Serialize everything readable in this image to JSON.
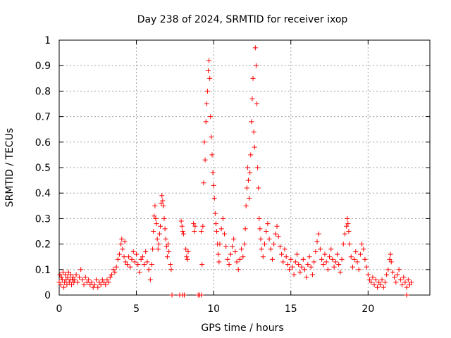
{
  "chart_data": {
    "type": "scatter",
    "title": "Day 238 of 2024, SRMTID for receiver ixop",
    "xlabel": "GPS time / hours",
    "ylabel": "SRMTID / TECUs",
    "xlim": [
      0,
      24
    ],
    "ylim": [
      0,
      1
    ],
    "xticks": [
      0,
      5,
      10,
      15,
      20
    ],
    "xtick_labels": [
      "0",
      "5",
      "10",
      "15",
      "20"
    ],
    "yticks": [
      0,
      0.1,
      0.2,
      0.3,
      0.4,
      0.5,
      0.6,
      0.7,
      0.8,
      0.9,
      1
    ],
    "ytick_labels": [
      "0",
      "0.1",
      "0.2",
      "0.3",
      "0.4",
      "0.5",
      "0.6",
      "0.7",
      "0.8",
      "0.9",
      "1"
    ],
    "grid": true,
    "marker": "+",
    "color": "#ff0000",
    "series": [
      {
        "name": "SRMTID",
        "points": [
          [
            0.0,
            0.05
          ],
          [
            0.05,
            0.08
          ],
          [
            0.1,
            0.04
          ],
          [
            0.15,
            0.07
          ],
          [
            0.2,
            0.06
          ],
          [
            0.25,
            0.09
          ],
          [
            0.3,
            0.03
          ],
          [
            0.35,
            0.05
          ],
          [
            0.4,
            0.08
          ],
          [
            0.45,
            0.06
          ],
          [
            0.5,
            0.04
          ],
          [
            0.55,
            0.07
          ],
          [
            0.6,
            0.09
          ],
          [
            0.65,
            0.05
          ],
          [
            0.7,
            0.06
          ],
          [
            0.75,
            0.08
          ],
          [
            0.8,
            0.04
          ],
          [
            0.85,
            0.06
          ],
          [
            0.9,
            0.07
          ],
          [
            0.95,
            0.05
          ],
          [
            1.0,
            0.06
          ],
          [
            1.1,
            0.08
          ],
          [
            1.2,
            0.05
          ],
          [
            1.3,
            0.07
          ],
          [
            1.4,
            0.1
          ],
          [
            1.5,
            0.06
          ],
          [
            1.6,
            0.04
          ],
          [
            1.7,
            0.07
          ],
          [
            1.8,
            0.05
          ],
          [
            1.9,
            0.06
          ],
          [
            2.0,
            0.04
          ],
          [
            2.1,
            0.05
          ],
          [
            2.2,
            0.03
          ],
          [
            2.3,
            0.04
          ],
          [
            2.4,
            0.06
          ],
          [
            2.5,
            0.03
          ],
          [
            2.6,
            0.05
          ],
          [
            2.7,
            0.04
          ],
          [
            2.8,
            0.06
          ],
          [
            2.9,
            0.05
          ],
          [
            3.0,
            0.04
          ],
          [
            3.1,
            0.06
          ],
          [
            3.2,
            0.05
          ],
          [
            3.3,
            0.07
          ],
          [
            3.4,
            0.08
          ],
          [
            3.5,
            0.1
          ],
          [
            3.6,
            0.09
          ],
          [
            3.7,
            0.11
          ],
          [
            3.8,
            0.14
          ],
          [
            3.9,
            0.16
          ],
          [
            4.0,
            0.2
          ],
          [
            4.05,
            0.22
          ],
          [
            4.1,
            0.18
          ],
          [
            4.2,
            0.15
          ],
          [
            4.25,
            0.21
          ],
          [
            4.3,
            0.13
          ],
          [
            4.4,
            0.12
          ],
          [
            4.5,
            0.15
          ],
          [
            4.6,
            0.11
          ],
          [
            4.7,
            0.14
          ],
          [
            4.8,
            0.17
          ],
          [
            4.9,
            0.13
          ],
          [
            5.0,
            0.16
          ],
          [
            5.1,
            0.12
          ],
          [
            5.2,
            0.09
          ],
          [
            5.3,
            0.14
          ],
          [
            5.4,
            0.15
          ],
          [
            5.5,
            0.12
          ],
          [
            5.6,
            0.17
          ],
          [
            5.7,
            0.13
          ],
          [
            5.8,
            0.1
          ],
          [
            5.9,
            0.06
          ],
          [
            6.0,
            0.12
          ],
          [
            6.05,
            0.18
          ],
          [
            6.1,
            0.25
          ],
          [
            6.15,
            0.31
          ],
          [
            6.2,
            0.35
          ],
          [
            6.25,
            0.3
          ],
          [
            6.3,
            0.28
          ],
          [
            6.35,
            0.22
          ],
          [
            6.4,
            0.18
          ],
          [
            6.45,
            0.2
          ],
          [
            6.5,
            0.24
          ],
          [
            6.55,
            0.27
          ],
          [
            6.6,
            0.36
          ],
          [
            6.65,
            0.39
          ],
          [
            6.7,
            0.37
          ],
          [
            6.75,
            0.35
          ],
          [
            6.8,
            0.3
          ],
          [
            6.85,
            0.26
          ],
          [
            6.9,
            0.22
          ],
          [
            6.95,
            0.19
          ],
          [
            7.0,
            0.15
          ],
          [
            7.05,
            0.2
          ],
          [
            7.1,
            0.17
          ],
          [
            7.2,
            0.12
          ],
          [
            7.25,
            0.1
          ],
          [
            7.3,
            0.0
          ],
          [
            7.8,
            0.0
          ],
          [
            8.0,
            0.0
          ],
          [
            8.1,
            0.0
          ],
          [
            7.9,
            0.29
          ],
          [
            7.95,
            0.27
          ],
          [
            8.0,
            0.25
          ],
          [
            8.05,
            0.24
          ],
          [
            8.2,
            0.18
          ],
          [
            8.25,
            0.15
          ],
          [
            8.3,
            0.14
          ],
          [
            8.35,
            0.17
          ],
          [
            8.7,
            0.28
          ],
          [
            8.75,
            0.25
          ],
          [
            8.8,
            0.27
          ],
          [
            9.0,
            0.0
          ],
          [
            9.1,
            0.0
          ],
          [
            9.2,
            0.0
          ],
          [
            9.2,
            0.25
          ],
          [
            9.25,
            0.12
          ],
          [
            9.3,
            0.27
          ],
          [
            9.35,
            0.44
          ],
          [
            9.4,
            0.6
          ],
          [
            9.45,
            0.53
          ],
          [
            9.5,
            0.68
          ],
          [
            9.55,
            0.75
          ],
          [
            9.6,
            0.8
          ],
          [
            9.65,
            0.88
          ],
          [
            9.7,
            0.92
          ],
          [
            9.75,
            0.85
          ],
          [
            9.8,
            0.7
          ],
          [
            9.85,
            0.62
          ],
          [
            9.9,
            0.55
          ],
          [
            9.95,
            0.48
          ],
          [
            10.0,
            0.43
          ],
          [
            10.05,
            0.38
          ],
          [
            10.1,
            0.32
          ],
          [
            10.15,
            0.28
          ],
          [
            10.2,
            0.25
          ],
          [
            10.25,
            0.2
          ],
          [
            10.3,
            0.16
          ],
          [
            10.35,
            0.13
          ],
          [
            10.4,
            0.2
          ],
          [
            10.5,
            0.26
          ],
          [
            10.6,
            0.3
          ],
          [
            10.7,
            0.24
          ],
          [
            10.8,
            0.19
          ],
          [
            10.9,
            0.14
          ],
          [
            11.0,
            0.12
          ],
          [
            11.1,
            0.16
          ],
          [
            11.2,
            0.19
          ],
          [
            11.3,
            0.22
          ],
          [
            11.4,
            0.17
          ],
          [
            11.5,
            0.13
          ],
          [
            11.6,
            0.1
          ],
          [
            11.7,
            0.14
          ],
          [
            11.8,
            0.18
          ],
          [
            11.9,
            0.15
          ],
          [
            12.0,
            0.2
          ],
          [
            12.05,
            0.26
          ],
          [
            12.1,
            0.35
          ],
          [
            12.15,
            0.42
          ],
          [
            12.2,
            0.5
          ],
          [
            12.25,
            0.45
          ],
          [
            12.3,
            0.38
          ],
          [
            12.35,
            0.48
          ],
          [
            12.4,
            0.55
          ],
          [
            12.45,
            0.68
          ],
          [
            12.5,
            0.77
          ],
          [
            12.55,
            0.85
          ],
          [
            12.6,
            0.64
          ],
          [
            12.65,
            0.58
          ],
          [
            12.7,
            0.97
          ],
          [
            12.75,
            0.9
          ],
          [
            12.8,
            0.75
          ],
          [
            12.85,
            0.5
          ],
          [
            12.9,
            0.42
          ],
          [
            12.95,
            0.3
          ],
          [
            13.0,
            0.26
          ],
          [
            13.05,
            0.22
          ],
          [
            13.1,
            0.18
          ],
          [
            13.2,
            0.15
          ],
          [
            13.3,
            0.2
          ],
          [
            13.4,
            0.25
          ],
          [
            13.5,
            0.28
          ],
          [
            13.6,
            0.22
          ],
          [
            13.7,
            0.18
          ],
          [
            13.8,
            0.14
          ],
          [
            13.9,
            0.2
          ],
          [
            14.0,
            0.24
          ],
          [
            14.1,
            0.27
          ],
          [
            14.2,
            0.23
          ],
          [
            14.3,
            0.19
          ],
          [
            14.4,
            0.16
          ],
          [
            14.5,
            0.13
          ],
          [
            14.6,
            0.18
          ],
          [
            14.7,
            0.15
          ],
          [
            14.8,
            0.12
          ],
          [
            14.9,
            0.1
          ],
          [
            15.0,
            0.14
          ],
          [
            15.1,
            0.11
          ],
          [
            15.2,
            0.08
          ],
          [
            15.3,
            0.13
          ],
          [
            15.4,
            0.16
          ],
          [
            15.5,
            0.12
          ],
          [
            15.6,
            0.09
          ],
          [
            15.7,
            0.11
          ],
          [
            15.8,
            0.14
          ],
          [
            15.9,
            0.1
          ],
          [
            16.0,
            0.07
          ],
          [
            16.1,
            0.12
          ],
          [
            16.2,
            0.15
          ],
          [
            16.3,
            0.11
          ],
          [
            16.4,
            0.08
          ],
          [
            16.5,
            0.13
          ],
          [
            16.6,
            0.17
          ],
          [
            16.7,
            0.21
          ],
          [
            16.8,
            0.24
          ],
          [
            16.9,
            0.18
          ],
          [
            17.0,
            0.14
          ],
          [
            17.1,
            0.12
          ],
          [
            17.2,
            0.16
          ],
          [
            17.3,
            0.13
          ],
          [
            17.4,
            0.1
          ],
          [
            17.5,
            0.15
          ],
          [
            17.6,
            0.18
          ],
          [
            17.7,
            0.14
          ],
          [
            17.8,
            0.11
          ],
          [
            17.9,
            0.13
          ],
          [
            18.0,
            0.16
          ],
          [
            18.1,
            0.12
          ],
          [
            18.2,
            0.09
          ],
          [
            18.3,
            0.14
          ],
          [
            18.4,
            0.2
          ],
          [
            18.5,
            0.24
          ],
          [
            18.6,
            0.27
          ],
          [
            18.65,
            0.3
          ],
          [
            18.7,
            0.28
          ],
          [
            18.75,
            0.25
          ],
          [
            18.8,
            0.2
          ],
          [
            18.9,
            0.15
          ],
          [
            19.0,
            0.11
          ],
          [
            19.1,
            0.14
          ],
          [
            19.2,
            0.17
          ],
          [
            19.3,
            0.13
          ],
          [
            19.4,
            0.1
          ],
          [
            19.5,
            0.16
          ],
          [
            19.6,
            0.2
          ],
          [
            19.7,
            0.18
          ],
          [
            19.8,
            0.14
          ],
          [
            19.9,
            0.11
          ],
          [
            20.0,
            0.08
          ],
          [
            20.1,
            0.06
          ],
          [
            20.2,
            0.05
          ],
          [
            20.3,
            0.07
          ],
          [
            20.4,
            0.04
          ],
          [
            20.5,
            0.06
          ],
          [
            20.6,
            0.03
          ],
          [
            20.7,
            0.05
          ],
          [
            20.8,
            0.04
          ],
          [
            20.9,
            0.06
          ],
          [
            21.0,
            0.03
          ],
          [
            21.1,
            0.05
          ],
          [
            21.2,
            0.08
          ],
          [
            21.3,
            0.1
          ],
          [
            21.4,
            0.14
          ],
          [
            21.45,
            0.16
          ],
          [
            21.5,
            0.13
          ],
          [
            21.6,
            0.09
          ],
          [
            21.7,
            0.07
          ],
          [
            21.8,
            0.05
          ],
          [
            21.9,
            0.08
          ],
          [
            22.0,
            0.1
          ],
          [
            22.1,
            0.06
          ],
          [
            22.2,
            0.04
          ],
          [
            22.3,
            0.07
          ],
          [
            22.4,
            0.05
          ],
          [
            22.5,
            0.03
          ],
          [
            22.6,
            0.06
          ],
          [
            22.7,
            0.04
          ],
          [
            22.8,
            0.05
          ],
          [
            22.5,
            0.0
          ]
        ]
      }
    ]
  }
}
